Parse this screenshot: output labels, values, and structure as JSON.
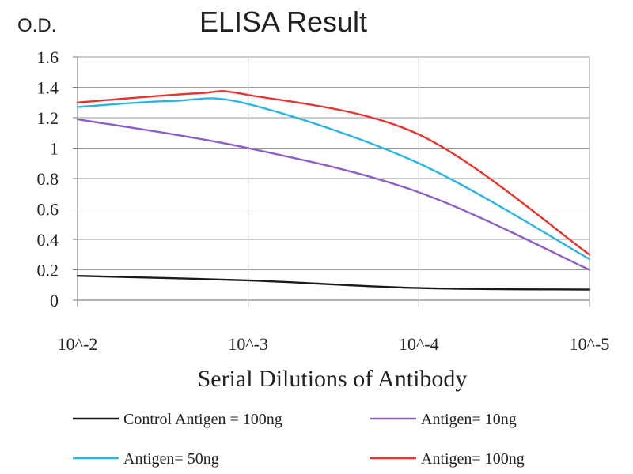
{
  "chart_data": {
    "type": "line",
    "title": "ELISA Result",
    "ylabel": "O.D.",
    "xlabel": "Serial Dilutions of Antibody",
    "ylim": [
      0,
      1.6
    ],
    "yticks": [
      "0",
      "0.2",
      "0.4",
      "0.6",
      "0.8",
      "1",
      "1.2",
      "1.4",
      "1.6"
    ],
    "categories": [
      "10^-2",
      "10^-3",
      "10^-4",
      "10^-5"
    ],
    "grid": "on",
    "legend_position": "bottom",
    "series": [
      {
        "name": "Control Antigen = 100ng",
        "color": "#1a1a1a",
        "x": [
          0,
          1,
          2,
          3
        ],
        "values": [
          0.16,
          0.13,
          0.08,
          0.07
        ]
      },
      {
        "name": "Antigen= 10ng",
        "color": "#8b5fc7",
        "x": [
          0,
          1,
          2,
          3
        ],
        "values": [
          1.19,
          1.0,
          0.71,
          0.2
        ]
      },
      {
        "name": "Antigen= 50ng",
        "color": "#29b4e6",
        "x": [
          0,
          0.55,
          1,
          2,
          3
        ],
        "values": [
          1.27,
          1.31,
          1.29,
          0.9,
          0.27
        ]
      },
      {
        "name": "Antigen= 100ng",
        "color": "#e8322b",
        "x": [
          0,
          0.7,
          1,
          2,
          3
        ],
        "values": [
          1.3,
          1.36,
          1.35,
          1.09,
          0.3
        ]
      }
    ]
  }
}
